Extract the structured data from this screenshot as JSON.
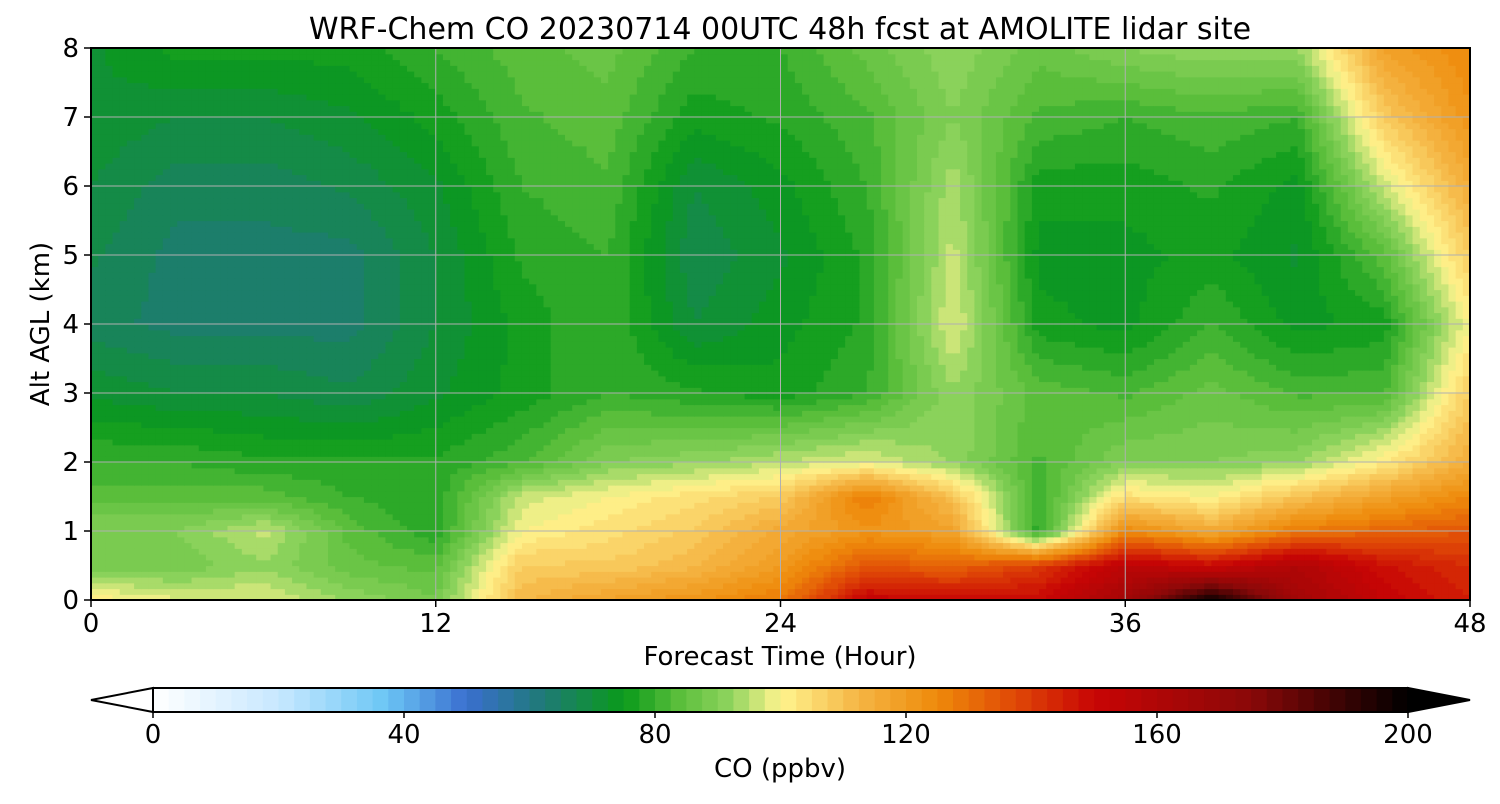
{
  "chart_data": {
    "type": "heatmap",
    "title": "WRF-Chem CO  20230714 00UTC 48h fcst at AMOLITE lidar site",
    "xlabel": "Forecast Time (Hour)",
    "ylabel": "Alt AGL (km)",
    "xlim": [
      0,
      48
    ],
    "ylim": [
      0,
      8
    ],
    "x_ticks": [
      0,
      12,
      24,
      36,
      48
    ],
    "y_ticks": [
      0,
      1,
      2,
      3,
      4,
      5,
      6,
      7,
      8
    ],
    "grid": true,
    "x": [
      0,
      3,
      6,
      9,
      12,
      15,
      18,
      21,
      24,
      27,
      30,
      33,
      36,
      39,
      42,
      45,
      48
    ],
    "y": [
      0,
      0.5,
      1,
      1.5,
      2,
      3,
      4,
      5,
      6,
      7,
      8
    ],
    "values": [
      [
        102,
        98,
        98,
        92,
        88,
        112,
        118,
        122,
        128,
        152,
        150,
        150,
        165,
        200,
        165,
        152,
        145
      ],
      [
        88,
        88,
        92,
        86,
        84,
        108,
        108,
        112,
        120,
        135,
        132,
        140,
        155,
        150,
        160,
        148,
        142
      ],
      [
        90,
        90,
        96,
        84,
        78,
        100,
        104,
        108,
        116,
        122,
        118,
        78,
        125,
        116,
        128,
        132,
        135
      ],
      [
        84,
        84,
        84,
        80,
        78,
        96,
        100,
        104,
        108,
        128,
        110,
        80,
        104,
        100,
        110,
        118,
        125
      ],
      [
        80,
        80,
        78,
        78,
        78,
        82,
        90,
        92,
        95,
        98,
        92,
        82,
        90,
        90,
        92,
        102,
        115
      ],
      [
        72,
        70,
        70,
        68,
        72,
        76,
        80,
        78,
        76,
        80,
        92,
        84,
        82,
        86,
        82,
        82,
        108
      ],
      [
        66,
        64,
        64,
        64,
        70,
        76,
        80,
        70,
        74,
        78,
        98,
        76,
        74,
        80,
        74,
        76,
        100
      ],
      [
        68,
        64,
        64,
        64,
        70,
        78,
        80,
        68,
        72,
        78,
        96,
        74,
        74,
        76,
        72,
        84,
        108
      ],
      [
        70,
        66,
        66,
        68,
        72,
        80,
        82,
        70,
        74,
        80,
        94,
        76,
        76,
        78,
        74,
        96,
        115
      ],
      [
        72,
        70,
        70,
        72,
        76,
        82,
        84,
        76,
        78,
        82,
        90,
        82,
        80,
        82,
        80,
        108,
        122
      ],
      [
        72,
        76,
        76,
        76,
        80,
        84,
        86,
        80,
        80,
        86,
        92,
        86,
        90,
        92,
        92,
        118,
        125
      ]
    ],
    "colorbar": {
      "label": "CO  (ppbv)",
      "min": 0,
      "max": 200,
      "step": 2.5,
      "ticks": [
        0,
        40,
        80,
        120,
        160,
        200
      ],
      "extend": "both",
      "orientation": "horizontal",
      "colors": [
        "#ffffff",
        "#c8e8ff",
        "#6cc6f5",
        "#3a6fcf",
        "#1f7a78",
        "#0a9a1a",
        "#5cbf3c",
        "#8fd45e",
        "#fff48e",
        "#f5b746",
        "#ee8a0a",
        "#e04a06",
        "#c80505",
        "#8a0808",
        "#000000"
      ],
      "stops": [
        0,
        20,
        37,
        50,
        62,
        75,
        84,
        92,
        100,
        112,
        125,
        137,
        150,
        175,
        200
      ]
    }
  }
}
